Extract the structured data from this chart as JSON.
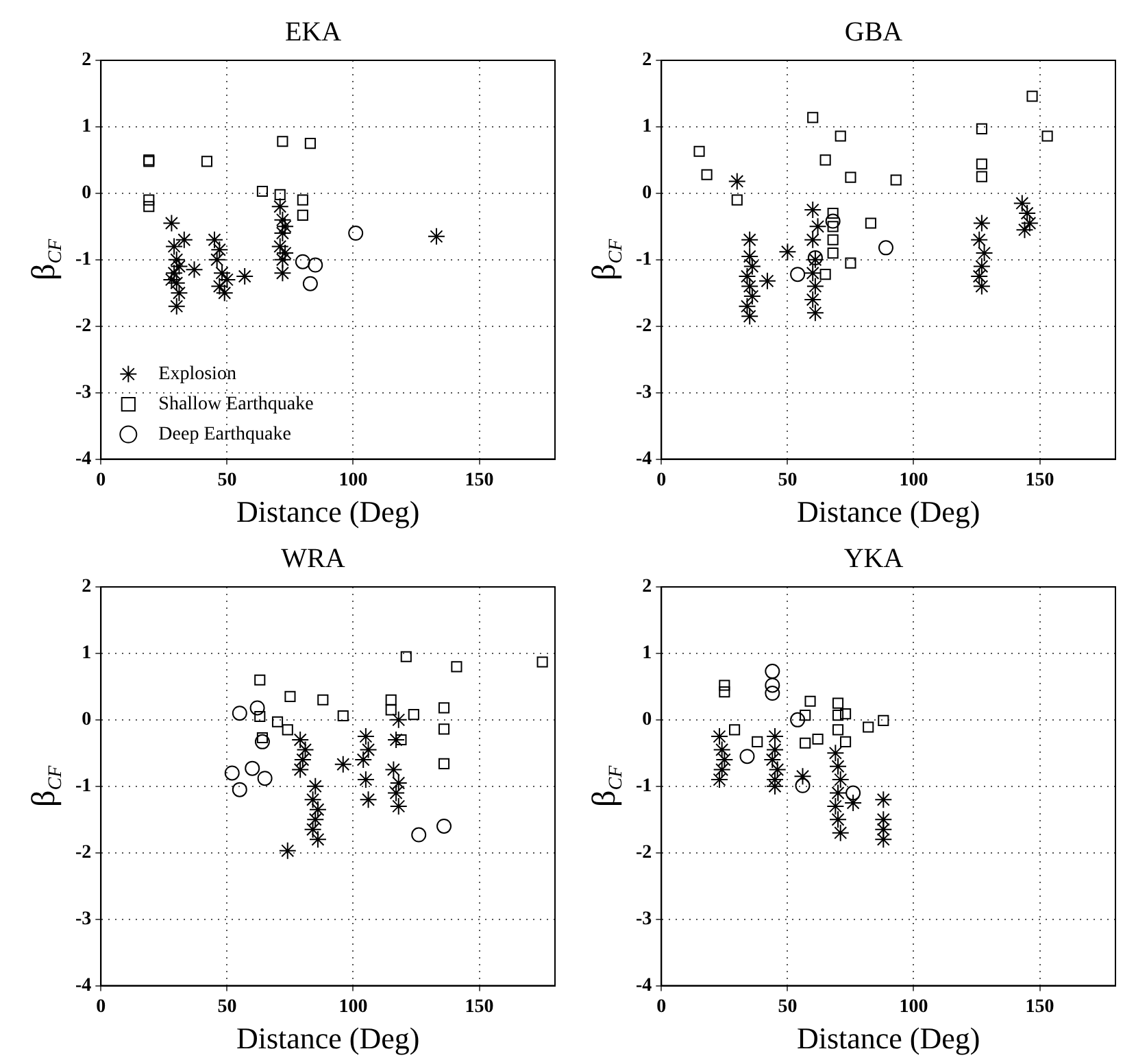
{
  "chart_data": [
    {
      "type": "scatter",
      "title": "EKA",
      "xlabel": "Distance (Deg)",
      "ylabel": "β$_{CF}$",
      "xlim": [
        0,
        180
      ],
      "ylim": [
        -4,
        2
      ],
      "xticks": [
        0,
        50,
        100,
        150
      ],
      "yticks": [
        -4,
        -3,
        -2,
        -1,
        0,
        1,
        2
      ],
      "grid": true,
      "legend": "bottom left",
      "series": [
        {
          "name": "Explosion",
          "color": "#000000",
          "marker": "cross",
          "x": [
            28,
            29,
            30,
            29,
            30,
            31,
            30,
            31,
            28,
            33,
            37,
            45,
            46,
            48,
            47,
            49,
            50,
            47,
            57,
            71,
            72,
            72,
            71,
            73,
            72,
            73,
            72,
            133
          ],
          "values": [
            -0.45,
            -0.8,
            -1.0,
            -1.2,
            -1.35,
            -1.5,
            -1.7,
            -1.1,
            -1.3,
            -0.7,
            -1.15,
            -0.7,
            -1.0,
            -1.2,
            -1.4,
            -1.5,
            -1.3,
            -0.85,
            -1.25,
            -0.2,
            -0.4,
            -0.6,
            -0.8,
            -0.9,
            -1.0,
            -0.5,
            -1.2,
            -0.65
          ]
        },
        {
          "name": "Shallow Earthquake",
          "color": "#000000",
          "marker": "square",
          "x": [
            19,
            19,
            19,
            19,
            42,
            72,
            83,
            64,
            71,
            80,
            80
          ],
          "values": [
            0.5,
            0.48,
            -0.1,
            -0.2,
            0.48,
            0.78,
            0.75,
            0.03,
            -0.02,
            -0.1,
            -0.33
          ]
        },
        {
          "name": "Deep Earthquake",
          "color": "#000000",
          "marker": "circle",
          "x": [
            101,
            80,
            85,
            83
          ],
          "values": [
            -0.6,
            -1.03,
            -1.08,
            -1.36
          ]
        }
      ]
    },
    {
      "type": "scatter",
      "title": "GBA",
      "xlabel": "Distance (Deg)",
      "ylabel": "β$_{CF}$",
      "xlim": [
        0,
        180
      ],
      "ylim": [
        -4,
        2
      ],
      "xticks": [
        0,
        50,
        100,
        150
      ],
      "yticks": [
        -4,
        -3,
        -2,
        -1,
        0,
        1,
        2
      ],
      "grid": true,
      "series": [
        {
          "color": "#000000",
          "marker": "cross",
          "x": [
            30,
            35,
            35,
            36,
            34,
            35,
            36,
            34,
            35,
            42,
            50,
            60,
            62,
            60,
            61,
            60,
            61,
            60,
            61,
            127,
            126,
            128,
            127,
            126,
            127,
            143,
            145,
            146,
            144
          ],
          "values": [
            0.18,
            -0.7,
            -0.95,
            -1.1,
            -1.25,
            -1.4,
            -1.55,
            -1.7,
            -1.85,
            -1.32,
            -0.88,
            -0.25,
            -0.5,
            -0.7,
            -1.0,
            -1.2,
            -1.4,
            -1.6,
            -1.8,
            -0.45,
            -0.7,
            -0.9,
            -1.1,
            -1.25,
            -1.4,
            -0.15,
            -0.3,
            -0.45,
            -0.55
          ]
        },
        {
          "color": "#000000",
          "marker": "square",
          "x": [
            15,
            18,
            30,
            60,
            71,
            65,
            75,
            93,
            83,
            75,
            68,
            68,
            68,
            68,
            65,
            127,
            127,
            127,
            147,
            153
          ],
          "values": [
            0.63,
            0.28,
            -0.1,
            1.14,
            0.86,
            0.5,
            0.24,
            0.2,
            -0.45,
            -1.05,
            -0.3,
            -0.5,
            -0.7,
            -0.9,
            -1.22,
            0.97,
            0.44,
            0.25,
            1.46,
            0.86
          ]
        },
        {
          "color": "#000000",
          "marker": "circle",
          "x": [
            89,
            54,
            68,
            61
          ],
          "values": [
            -0.82,
            -1.22,
            -0.42,
            -0.97
          ]
        }
      ]
    },
    {
      "type": "scatter",
      "title": "WRA",
      "xlabel": "Distance (Deg)",
      "ylabel": "β$_{CF}$",
      "xlim": [
        0,
        180
      ],
      "ylim": [
        -4,
        2
      ],
      "xticks": [
        0,
        50,
        100,
        150
      ],
      "yticks": [
        -4,
        -3,
        -2,
        -1,
        0,
        1,
        2
      ],
      "grid": true,
      "series": [
        {
          "color": "#000000",
          "marker": "cross",
          "x": [
            74,
            79,
            81,
            80,
            79,
            85,
            84,
            86,
            85,
            84,
            86,
            96,
            105,
            106,
            104,
            105,
            106,
            118,
            117,
            116,
            118,
            117,
            118
          ],
          "values": [
            -1.97,
            -0.3,
            -0.45,
            -0.6,
            -0.75,
            -1.0,
            -1.2,
            -1.35,
            -1.5,
            -1.65,
            -1.8,
            -0.67,
            -0.25,
            -0.45,
            -0.6,
            -0.9,
            -1.2,
            0.0,
            -0.3,
            -0.75,
            -0.95,
            -1.1,
            -1.3
          ]
        },
        {
          "color": "#000000",
          "marker": "square",
          "x": [
            121,
            141,
            175,
            63,
            75,
            88,
            96,
            115,
            124,
            136,
            136,
            136,
            63,
            64,
            74,
            119,
            70,
            115
          ],
          "values": [
            0.95,
            0.8,
            0.87,
            0.6,
            0.35,
            0.3,
            0.06,
            0.3,
            0.08,
            0.18,
            -0.14,
            -0.66,
            0.05,
            -0.27,
            -0.15,
            -0.3,
            -0.03,
            0.15
          ]
        },
        {
          "color": "#000000",
          "marker": "circle",
          "x": [
            55,
            62,
            52,
            55,
            60,
            65,
            126,
            136,
            64
          ],
          "values": [
            0.1,
            0.18,
            -0.8,
            -1.05,
            -0.73,
            -0.88,
            -1.73,
            -1.6,
            -0.33
          ]
        }
      ]
    },
    {
      "type": "scatter",
      "title": "YKA",
      "xlabel": "Distance (Deg)",
      "ylabel": "β$_{CF}$",
      "xlim": [
        0,
        180
      ],
      "ylim": [
        -4,
        2
      ],
      "xticks": [
        0,
        50,
        100,
        150
      ],
      "yticks": [
        -4,
        -3,
        -2,
        -1,
        0,
        1,
        2
      ],
      "grid": true,
      "series": [
        {
          "color": "#000000",
          "marker": "cross",
          "x": [
            23,
            24,
            25,
            24,
            23,
            45,
            45,
            44,
            46,
            45,
            45,
            56,
            69,
            70,
            71,
            70,
            69,
            70,
            71,
            76,
            88,
            88,
            88,
            88
          ],
          "values": [
            -0.25,
            -0.45,
            -0.6,
            -0.75,
            -0.9,
            -0.25,
            -0.45,
            -0.6,
            -0.75,
            -0.9,
            -1.0,
            -0.85,
            -0.5,
            -0.7,
            -0.9,
            -1.1,
            -1.3,
            -1.5,
            -1.7,
            -1.25,
            -1.2,
            -1.5,
            -1.65,
            -1.8
          ]
        },
        {
          "color": "#000000",
          "marker": "square",
          "x": [
            25,
            25,
            29,
            38,
            59,
            57,
            57,
            62,
            70,
            70,
            73,
            70,
            73,
            82,
            88
          ],
          "values": [
            0.52,
            0.42,
            -0.15,
            -0.33,
            0.28,
            0.07,
            -0.35,
            -0.29,
            0.25,
            0.07,
            0.09,
            -0.15,
            -0.33,
            -0.11,
            -0.01
          ]
        },
        {
          "color": "#000000",
          "marker": "circle",
          "x": [
            44,
            44,
            44,
            54,
            34,
            56,
            76
          ],
          "values": [
            0.73,
            0.52,
            0.4,
            0.0,
            -0.55,
            -0.99,
            -1.1
          ]
        }
      ]
    }
  ]
}
